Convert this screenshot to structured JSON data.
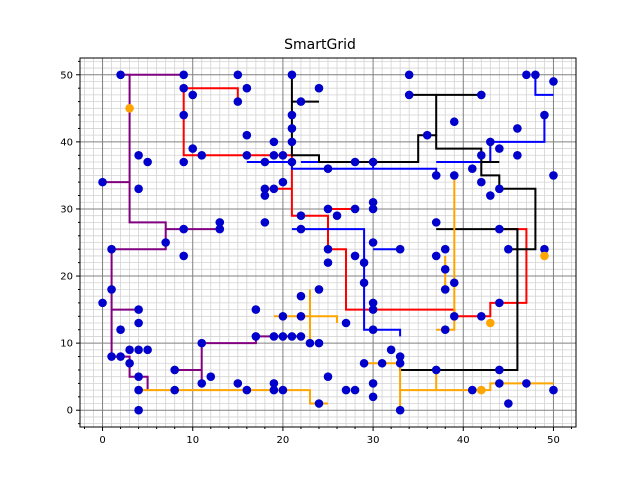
{
  "chart_data": {
    "type": "line",
    "title": "SmartGrid",
    "xlabel": "",
    "ylabel": "",
    "xlim": [
      -2.5,
      52.5
    ],
    "ylim": [
      -2.5,
      52.5
    ],
    "xticks": [
      0,
      10,
      20,
      30,
      40,
      50
    ],
    "yticks": [
      0,
      10,
      20,
      30,
      40,
      50
    ],
    "grid": "major and minor, every 1 unit minor, every 10 major",
    "colors": {
      "house": "#0000cc",
      "battery": "#ffa500",
      "grid_minor": "#d3d3d3",
      "grid_major": "#808080"
    },
    "houses": [
      [
        2,
        50
      ],
      [
        9,
        50
      ],
      [
        15,
        50
      ],
      [
        21,
        50
      ],
      [
        24,
        48
      ],
      [
        16,
        48
      ],
      [
        9,
        48
      ],
      [
        10,
        47
      ],
      [
        15,
        46
      ],
      [
        22,
        46
      ],
      [
        21,
        44
      ],
      [
        9,
        44
      ],
      [
        34,
        50
      ],
      [
        34,
        47
      ],
      [
        42,
        47
      ],
      [
        48,
        50
      ],
      [
        47,
        50
      ],
      [
        50,
        49
      ],
      [
        49,
        44
      ],
      [
        39,
        43
      ],
      [
        46,
        42
      ],
      [
        46,
        38
      ],
      [
        36,
        41
      ],
      [
        43,
        40
      ],
      [
        44,
        39
      ],
      [
        42,
        38
      ],
      [
        41,
        36
      ],
      [
        42,
        34
      ],
      [
        43,
        32
      ],
      [
        44,
        33
      ],
      [
        50,
        35
      ],
      [
        21,
        42
      ],
      [
        16,
        41
      ],
      [
        10,
        39
      ],
      [
        11,
        38
      ],
      [
        16,
        38
      ],
      [
        18,
        37
      ],
      [
        19,
        38
      ],
      [
        20,
        38
      ],
      [
        21,
        37
      ],
      [
        19,
        40
      ],
      [
        21,
        40
      ],
      [
        25,
        36
      ],
      [
        28,
        37
      ],
      [
        30,
        37
      ],
      [
        37,
        35
      ],
      [
        39,
        35
      ],
      [
        9,
        37
      ],
      [
        5,
        37
      ],
      [
        4,
        38
      ],
      [
        4,
        33
      ],
      [
        20,
        34
      ],
      [
        19,
        33
      ],
      [
        18,
        32
      ],
      [
        18,
        33
      ],
      [
        22,
        29
      ],
      [
        22,
        27
      ],
      [
        18,
        28
      ],
      [
        25,
        30
      ],
      [
        26,
        29
      ],
      [
        30,
        31
      ],
      [
        30,
        30
      ],
      [
        28,
        30
      ],
      [
        0,
        34
      ],
      [
        13,
        28
      ],
      [
        13,
        27
      ],
      [
        9,
        27
      ],
      [
        7,
        25
      ],
      [
        9,
        23
      ],
      [
        1,
        24
      ],
      [
        1,
        18
      ],
      [
        0,
        16
      ],
      [
        25,
        24
      ],
      [
        25,
        22
      ],
      [
        28,
        23
      ],
      [
        30,
        25
      ],
      [
        29,
        22
      ],
      [
        29,
        19
      ],
      [
        30,
        16
      ],
      [
        30,
        15
      ],
      [
        30,
        12
      ],
      [
        33,
        24
      ],
      [
        37,
        28
      ],
      [
        38,
        24
      ],
      [
        37,
        23
      ],
      [
        38,
        21
      ],
      [
        38,
        18
      ],
      [
        39,
        19
      ],
      [
        38,
        12
      ],
      [
        39,
        14
      ],
      [
        44,
        27
      ],
      [
        45,
        24
      ],
      [
        49,
        24
      ],
      [
        44,
        16
      ],
      [
        42,
        14
      ],
      [
        4,
        15
      ],
      [
        2,
        12
      ],
      [
        4,
        13
      ],
      [
        1,
        8
      ],
      [
        3,
        9
      ],
      [
        4,
        9
      ],
      [
        2,
        8
      ],
      [
        3,
        7
      ],
      [
        5,
        9
      ],
      [
        17,
        15
      ],
      [
        20,
        14
      ],
      [
        22,
        17
      ],
      [
        22,
        14
      ],
      [
        22,
        11
      ],
      [
        20,
        11
      ],
      [
        21,
        11
      ],
      [
        19,
        11
      ],
      [
        17,
        11
      ],
      [
        11,
        10
      ],
      [
        24,
        18
      ],
      [
        24,
        10
      ],
      [
        23,
        10
      ],
      [
        27,
        13
      ],
      [
        12,
        5
      ],
      [
        11,
        4
      ],
      [
        8,
        6
      ],
      [
        8,
        3
      ],
      [
        4,
        5
      ],
      [
        4,
        3
      ],
      [
        4,
        0
      ],
      [
        15,
        4
      ],
      [
        16,
        3
      ],
      [
        19,
        4
      ],
      [
        19,
        3
      ],
      [
        20,
        3
      ],
      [
        24,
        1
      ],
      [
        25,
        5
      ],
      [
        27,
        3
      ],
      [
        28,
        3
      ],
      [
        29,
        7
      ],
      [
        30,
        4
      ],
      [
        30,
        2
      ],
      [
        31,
        7
      ],
      [
        32,
        9
      ],
      [
        33,
        7
      ],
      [
        33,
        8
      ],
      [
        33,
        0
      ],
      [
        37,
        6
      ],
      [
        44,
        6
      ],
      [
        44,
        4
      ],
      [
        47,
        4
      ],
      [
        45,
        1
      ],
      [
        50,
        3
      ],
      [
        41,
        3
      ]
    ],
    "batteries": [
      [
        3,
        45
      ],
      [
        43,
        13
      ],
      [
        49,
        23
      ],
      [
        42,
        3
      ]
    ],
    "series": [
      {
        "color": "#800080",
        "lines": [
          [
            [
              2,
              50
            ],
            [
              3,
              50
            ],
            [
              3,
              28
            ],
            [
              7,
              28
            ],
            [
              7,
              24
            ],
            [
              1,
              24
            ],
            [
              1,
              8
            ],
            [
              3,
              8
            ],
            [
              3,
              5
            ],
            [
              5,
              5
            ],
            [
              5,
              3
            ]
          ],
          [
            [
              3,
              50
            ],
            [
              9,
              50
            ]
          ],
          [
            [
              0,
              34
            ],
            [
              3,
              34
            ]
          ],
          [
            [
              7,
              27
            ],
            [
              13,
              27
            ]
          ],
          [
            [
              1,
              15
            ],
            [
              4,
              15
            ]
          ],
          [
            [
              11,
              10
            ],
            [
              11,
              4
            ]
          ],
          [
            [
              8,
              6
            ],
            [
              11,
              6
            ]
          ],
          [
            [
              11,
              10
            ],
            [
              17,
              10
            ],
            [
              17,
              11
            ],
            [
              22,
              11
            ]
          ]
        ]
      },
      {
        "color": "#ff0000",
        "lines": [
          [
            [
              9,
              48
            ],
            [
              15,
              48
            ],
            [
              15,
              46
            ]
          ],
          [
            [
              9,
              48
            ],
            [
              9,
              38
            ],
            [
              21,
              38
            ],
            [
              21,
              29
            ],
            [
              25,
              29
            ],
            [
              25,
              24
            ],
            [
              27,
              24
            ],
            [
              27,
              15
            ],
            [
              39,
              15
            ],
            [
              39,
              14
            ],
            [
              43,
              14
            ],
            [
              43,
              16
            ],
            [
              47,
              16
            ],
            [
              47,
              27
            ],
            [
              44,
              27
            ]
          ],
          [
            [
              18,
              33
            ],
            [
              21,
              33
            ]
          ],
          [
            [
              25,
              30
            ],
            [
              28,
              30
            ]
          ]
        ]
      },
      {
        "color": "#0000ff",
        "lines": [
          [
            [
              16,
              37
            ],
            [
              21,
              37
            ],
            [
              21,
              36
            ],
            [
              37,
              36
            ],
            [
              37,
              35
            ]
          ],
          [
            [
              22,
              37
            ],
            [
              30,
              37
            ],
            [
              30,
              36
            ]
          ],
          [
            [
              21,
              27
            ],
            [
              29,
              27
            ],
            [
              29,
              12
            ],
            [
              33,
              12
            ],
            [
              33,
              11
            ]
          ],
          [
            [
              30,
              24
            ],
            [
              33,
              24
            ]
          ],
          [
            [
              48,
              50
            ],
            [
              48,
              47
            ],
            [
              50,
              47
            ]
          ],
          [
            [
              49,
              44
            ],
            [
              49,
              40
            ],
            [
              43,
              40
            ],
            [
              43,
              37
            ],
            [
              37,
              37
            ]
          ]
        ]
      },
      {
        "color": "#000000",
        "lines": [
          [
            [
              21,
              44
            ],
            [
              21,
              50
            ]
          ],
          [
            [
              21,
              46
            ],
            [
              24,
              46
            ]
          ],
          [
            [
              21,
              44
            ],
            [
              21,
              38
            ],
            [
              24,
              38
            ],
            [
              24,
              37
            ],
            [
              35,
              37
            ],
            [
              35,
              41
            ],
            [
              37,
              41
            ],
            [
              37,
              47
            ],
            [
              34,
              47
            ]
          ],
          [
            [
              37,
              47
            ],
            [
              42,
              47
            ]
          ],
          [
            [
              37,
              41
            ],
            [
              37,
              39
            ],
            [
              42,
              39
            ],
            [
              42,
              35
            ],
            [
              44,
              35
            ],
            [
              44,
              33
            ],
            [
              48,
              33
            ],
            [
              48,
              24
            ],
            [
              45,
              24
            ]
          ],
          [
            [
              42,
              37
            ],
            [
              44,
              37
            ]
          ],
          [
            [
              37,
              27
            ],
            [
              46,
              27
            ],
            [
              46,
              6
            ],
            [
              33,
              6
            ],
            [
              33,
              8
            ]
          ]
        ]
      },
      {
        "color": "#ffa500",
        "lines": [
          [
            [
              4,
              3
            ],
            [
              23,
              3
            ],
            [
              23,
              1
            ],
            [
              25,
              1
            ]
          ],
          [
            [
              29,
              7
            ],
            [
              33,
              7
            ],
            [
              33,
              0
            ]
          ],
          [
            [
              33,
              3
            ],
            [
              43,
              3
            ],
            [
              43,
              4
            ],
            [
              50,
              4
            ]
          ],
          [
            [
              37,
              6
            ],
            [
              37,
              3
            ]
          ],
          [
            [
              39,
              35
            ],
            [
              39,
              12
            ],
            [
              37,
              12
            ]
          ],
          [
            [
              38,
              23
            ],
            [
              38,
              18
            ]
          ],
          [
            [
              19,
              14
            ],
            [
              26,
              14
            ],
            [
              26,
              13
            ]
          ],
          [
            [
              23,
              18
            ],
            [
              23,
              10
            ]
          ]
        ]
      }
    ]
  }
}
